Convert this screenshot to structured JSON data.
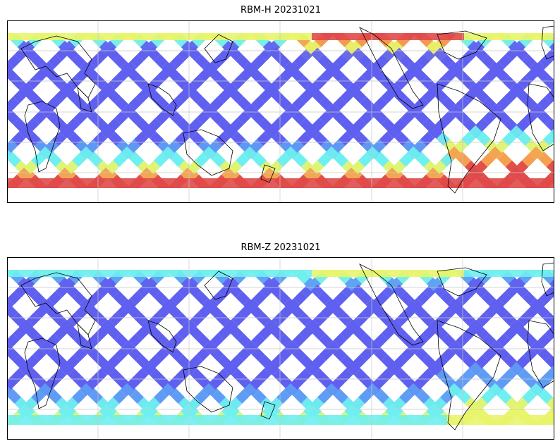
{
  "panels": [
    {
      "id": "h",
      "title": "RBM-H 20231021",
      "intensity": "high"
    },
    {
      "id": "z",
      "title": "RBM-Z 20231021",
      "intensity": "low"
    }
  ],
  "colormap": [
    "#5f5ff0",
    "#5f9cf5",
    "#6ff0f0",
    "#e8f56a",
    "#f5a050",
    "#e04a4a"
  ],
  "coastline_color": "#000000",
  "gridline_color": "#c8c8c8"
}
